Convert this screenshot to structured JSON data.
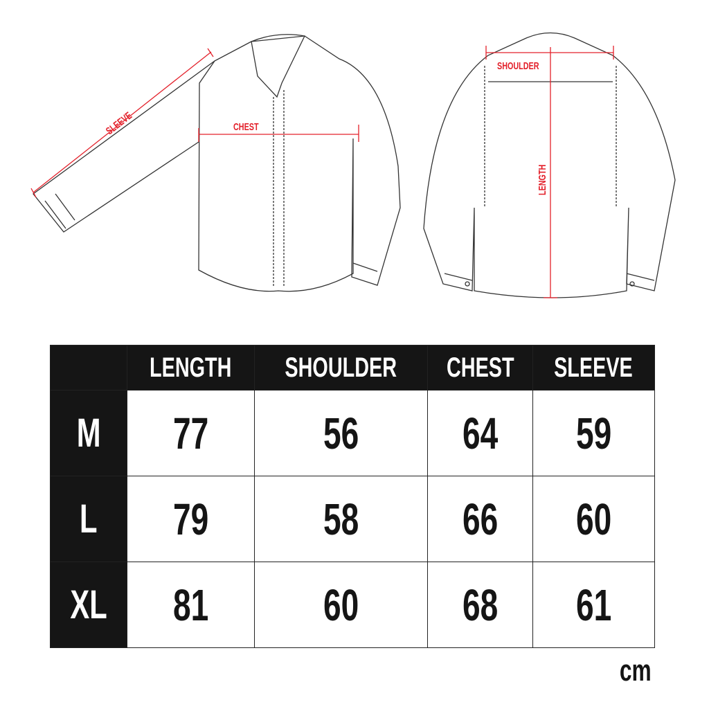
{
  "colors": {
    "accent": "#e3202a",
    "dark": "#151515"
  },
  "diagram": {
    "front_labels": {
      "sleeve": "SLEEVE",
      "chest": "CHEST"
    },
    "back_labels": {
      "shoulder": "SHOULDER",
      "length": "LENGTH"
    }
  },
  "table": {
    "headers": [
      "LENGTH",
      "SHOULDER",
      "CHEST",
      "SLEEVE"
    ],
    "rows": [
      {
        "size": "M",
        "values": [
          "77",
          "56",
          "64",
          "59"
        ]
      },
      {
        "size": "L",
        "values": [
          "79",
          "58",
          "66",
          "60"
        ]
      },
      {
        "size": "XL",
        "values": [
          "81",
          "60",
          "68",
          "61"
        ]
      }
    ]
  },
  "unit": "cm"
}
